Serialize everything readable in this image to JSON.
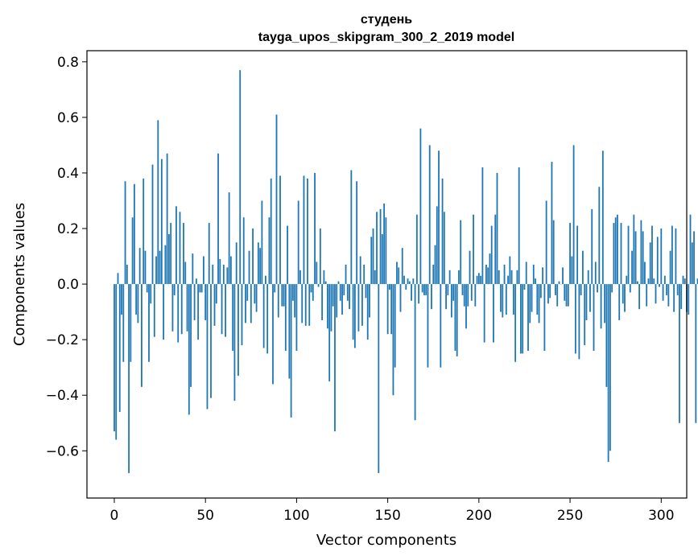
{
  "chart_data": {
    "type": "bar",
    "title": "студень",
    "subtitle": "tayga_upos_skipgram_300_2_2019 model",
    "xlabel": "Vector components",
    "ylabel": "Components values",
    "xlim": [
      -15,
      314
    ],
    "ylim": [
      -0.77,
      0.84
    ],
    "xticks": [
      0,
      50,
      100,
      150,
      200,
      250,
      300
    ],
    "yticks": [
      -0.6,
      -0.4,
      -0.2,
      0.0,
      0.2,
      0.4,
      0.6,
      0.8
    ],
    "ytick_labels": [
      "−0.6",
      "−0.4",
      "−0.2",
      "0.0",
      "0.2",
      "0.4",
      "0.6",
      "0.8"
    ],
    "xtick_labels": [
      "0",
      "50",
      "100",
      "150",
      "200",
      "250",
      "300"
    ],
    "bar_color": "#1f77b4",
    "values": [
      -0.53,
      -0.56,
      0.04,
      -0.46,
      -0.11,
      -0.28,
      0.37,
      0.07,
      -0.68,
      -0.28,
      0.24,
      0.36,
      -0.11,
      -0.14,
      0.13,
      -0.37,
      0.38,
      0.12,
      -0.03,
      -0.28,
      -0.07,
      0.43,
      -0.19,
      0.1,
      0.59,
      0.12,
      0.45,
      -0.2,
      0.14,
      0.47,
      0.18,
      0.22,
      -0.17,
      -0.04,
      0.28,
      -0.21,
      0.26,
      -0.18,
      0.22,
      0.08,
      -0.17,
      -0.47,
      -0.37,
      0.11,
      -0.13,
      0.02,
      -0.2,
      -0.03,
      -0.03,
      0.1,
      -0.13,
      -0.45,
      0.22,
      -0.41,
      0.07,
      -0.15,
      -0.07,
      0.47,
      0.09,
      -0.18,
      0.07,
      -0.19,
      0.06,
      0.33,
      0.1,
      -0.24,
      -0.42,
      0.15,
      -0.33,
      0.77,
      -0.22,
      0.24,
      -0.14,
      -0.06,
      0.12,
      -0.14,
      0.2,
      -0.07,
      -0.1,
      0.15,
      0.13,
      0.3,
      -0.23,
      0.03,
      -0.25,
      0.24,
      0.38,
      -0.36,
      -0.03,
      0.61,
      -0.12,
      0.39,
      -0.08,
      -0.08,
      -0.24,
      0.21,
      -0.34,
      -0.48,
      -0.06,
      -0.12,
      -0.24,
      0.3,
      0.05,
      -0.14,
      0.39,
      -0.15,
      0.38,
      -0.15,
      -0.03,
      -0.06,
      0.4,
      0.08,
      -0.01,
      0.2,
      -0.13,
      0.05,
      0.01,
      -0.16,
      -0.35,
      -0.17,
      -0.08,
      -0.53,
      -0.12,
      0.01,
      -0.06,
      -0.11,
      -0.04,
      0.07,
      -0.06,
      -0.09,
      0.41,
      -0.2,
      -0.23,
      0.37,
      -0.17,
      0.1,
      -0.15,
      0.07,
      -0.05,
      -0.2,
      -0.12,
      0.17,
      0.2,
      0.05,
      0.26,
      -0.68,
      0.27,
      0.18,
      0.29,
      0.24,
      -0.18,
      -0.02,
      -0.18,
      -0.4,
      -0.3,
      0.08,
      0.06,
      -0.1,
      0.13,
      0.03,
      -0.02,
      0.02,
      0.01,
      -0.06,
      0.02,
      -0.49,
      0.25,
      -0.07,
      0.56,
      -0.03,
      -0.04,
      -0.04,
      -0.3,
      0.5,
      -0.09,
      0.07,
      0.14,
      0.28,
      0.48,
      -0.3,
      0.38,
      0.26,
      -0.09,
      -0.04,
      0.05,
      -0.12,
      -0.06,
      -0.24,
      -0.26,
      0.05,
      0.23,
      -0.04,
      -0.08,
      -0.16,
      -0.08,
      0.12,
      -0.06,
      0.25,
      -0.08,
      0.03,
      0.04,
      0.03,
      0.42,
      -0.21,
      0.07,
      0.06,
      0.11,
      0.21,
      -0.21,
      0.25,
      0.4,
      0.05,
      -0.1,
      -0.12,
      0.07,
      -0.11,
      0.03,
      0.1,
      0.05,
      -0.11,
      -0.28,
      0.05,
      0.42,
      -0.25,
      -0.25,
      -0.02,
      0.08,
      -0.24,
      -0.14,
      -0.1,
      0.07,
      0.02,
      -0.11,
      -0.14,
      -0.05,
      0.06,
      -0.24,
      0.3,
      -0.07,
      -0.05,
      0.44,
      0.23,
      -0.04,
      -0.08,
      0.01,
      0.0,
      0.06,
      -0.06,
      -0.08,
      -0.08,
      0.22,
      0.1,
      0.5,
      -0.25,
      0.21,
      -0.27,
      -0.04,
      0.12,
      -0.22,
      -0.13,
      0.05,
      -0.1,
      0.27,
      -0.24,
      0.08,
      -0.03,
      0.35,
      -0.16,
      0.48,
      -0.14,
      -0.37,
      -0.64,
      -0.6,
      -0.03,
      0.22,
      0.24,
      0.25,
      -0.13,
      0.22,
      -0.07,
      -0.1,
      0.03,
      0.21,
      -0.03,
      0.12,
      0.25,
      0.19,
      0.01,
      -0.09,
      0.23,
      0.19,
      0.08,
      -0.08,
      0.02,
      0.15,
      0.21,
      0.02,
      -0.07,
      0.17,
      -0.01,
      0.2,
      -0.06,
      0.03,
      -0.04,
      -0.08,
      0.12,
      0.21,
      -0.1,
      0.2,
      -0.04,
      -0.5,
      -0.09,
      0.03,
      0.02,
      -0.1,
      -0.11,
      0.25,
      0.15,
      0.19,
      -0.5,
      0.02,
      -0.12
    ]
  }
}
